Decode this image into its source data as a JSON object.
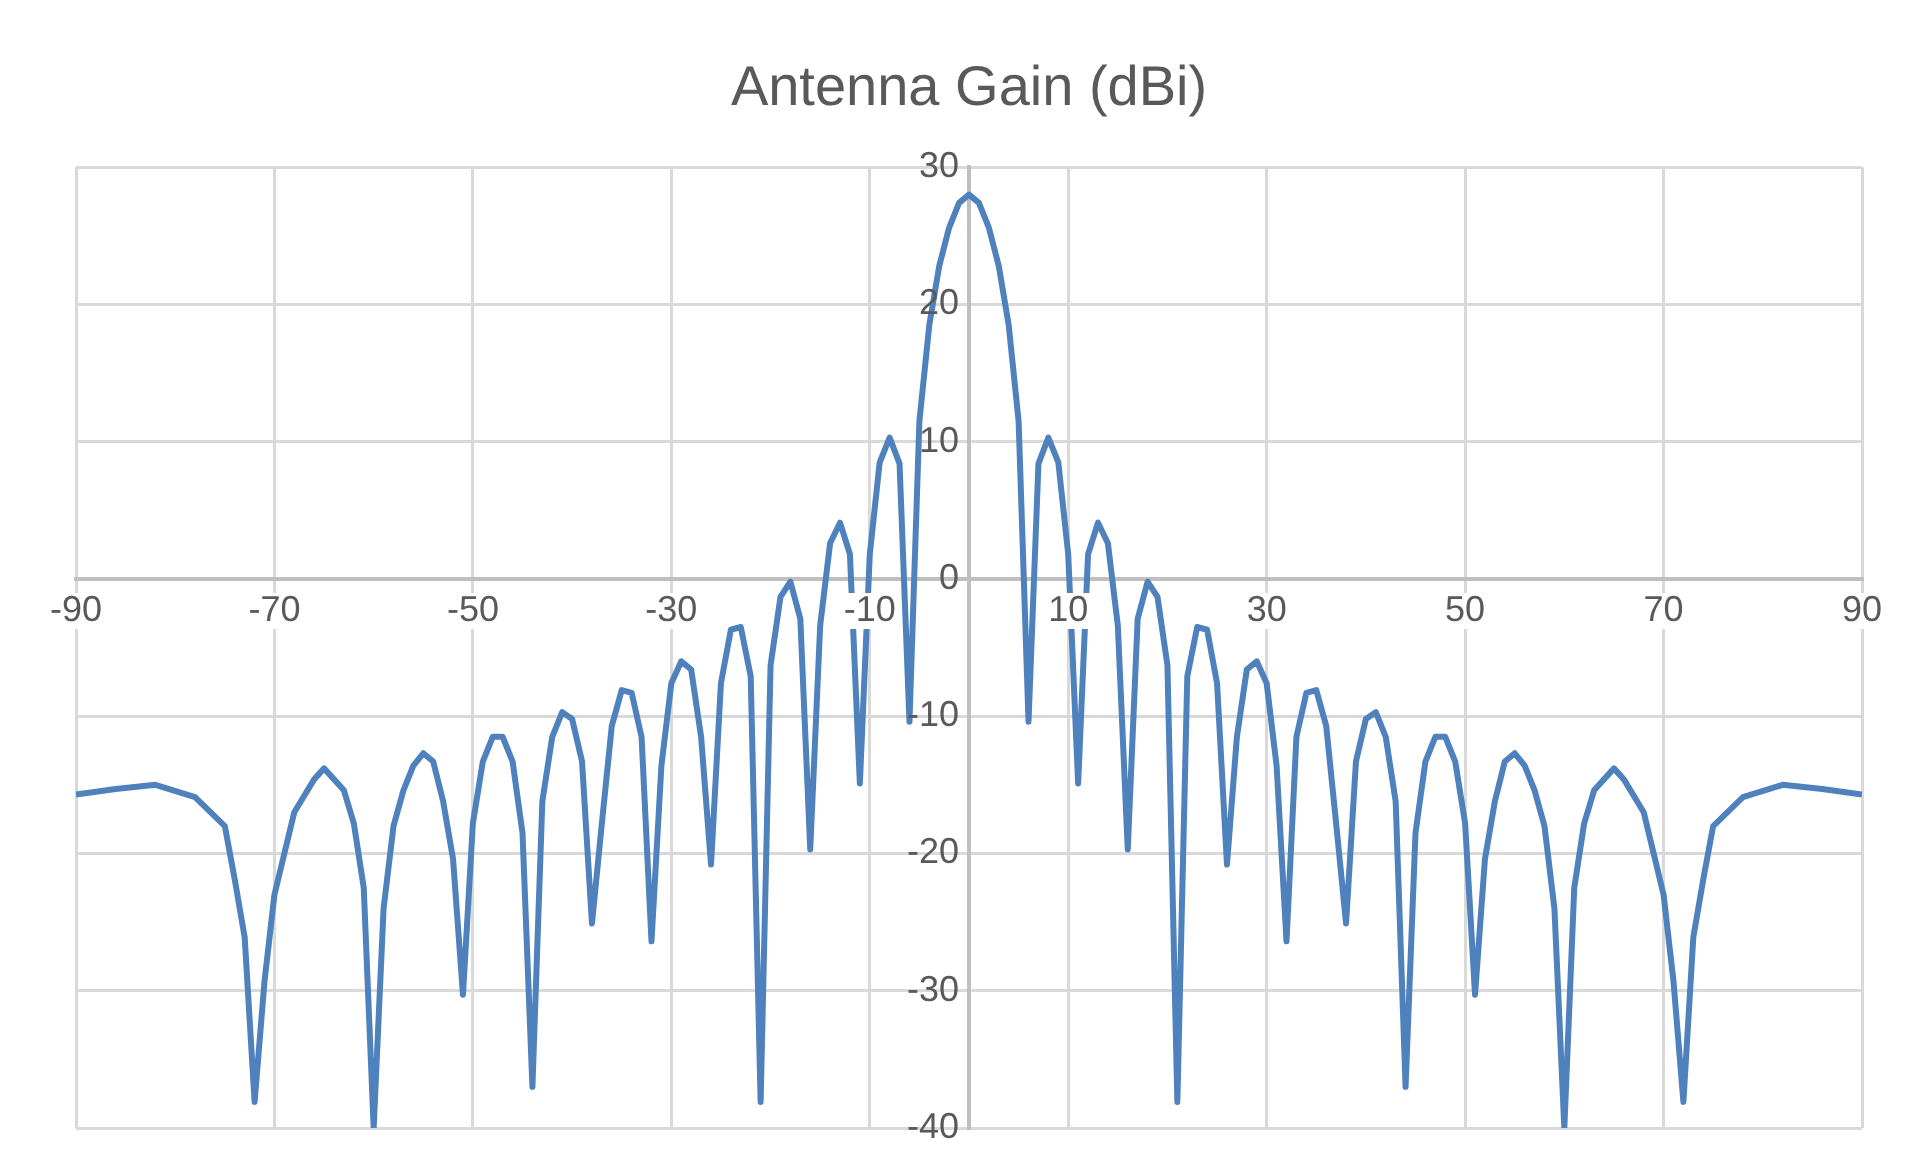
{
  "chart_data": {
    "type": "line",
    "title": "Antenna Gain (dBi)",
    "x": [
      -90,
      -86,
      -82,
      -78,
      -75,
      -74,
      -73,
      -72,
      -71,
      -70,
      -68,
      -66,
      -65,
      -63,
      -62,
      -61,
      -60,
      -59,
      -58,
      -57,
      -56,
      -55,
      -54,
      -53,
      -52,
      -51,
      -50,
      -49,
      -48,
      -47,
      -46,
      -45,
      -44,
      -43,
      -42,
      -41,
      -40,
      -39,
      -38,
      -37,
      -36,
      -35,
      -34,
      -33,
      -32,
      -31,
      -30,
      -29,
      -28,
      -27,
      -26,
      -25,
      -24,
      -23,
      -22,
      -21,
      -20,
      -19,
      -18,
      -17,
      -16,
      -15,
      -14,
      -13,
      -12,
      -11,
      -10,
      -9,
      -8,
      -7,
      -6,
      -5,
      -4,
      -3,
      -2,
      -1,
      0,
      1,
      2,
      3,
      4,
      5,
      6,
      7,
      8,
      9,
      10,
      11,
      12,
      13,
      14,
      15,
      16,
      17,
      18,
      19,
      20,
      21,
      22,
      23,
      24,
      25,
      26,
      27,
      28,
      29,
      30,
      31,
      32,
      33,
      34,
      35,
      36,
      37,
      38,
      39,
      40,
      41,
      42,
      43,
      44,
      45,
      46,
      47,
      48,
      49,
      50,
      51,
      52,
      53,
      54,
      55,
      56,
      57,
      58,
      59,
      60,
      61,
      62,
      63,
      65,
      66,
      68,
      70,
      71,
      72,
      73,
      74,
      75,
      78,
      82,
      86,
      90
    ],
    "series": [
      {
        "color": "#4f81bd",
        "values": [
          -15.7,
          -15.3,
          -15,
          -15.9,
          -18,
          -21.9,
          -26.1,
          -38.1,
          -29.3,
          -23,
          -17,
          -14.6,
          -13.8,
          -15.4,
          -17.8,
          -22.5,
          -40,
          -24,
          -18,
          -15.4,
          -13.6,
          -12.7,
          -13.3,
          -16.2,
          -20.4,
          -30.3,
          -17.8,
          -13.3,
          -11.5,
          -11.5,
          -13.3,
          -18.5,
          -37,
          -16.2,
          -11.5,
          -9.7,
          -10.2,
          -13.3,
          -25.1,
          -17.8,
          -10.7,
          -8.1,
          -8.3,
          -11.5,
          -26.4,
          -13.6,
          -7.6,
          -6.0,
          -6.6,
          -11.5,
          -20.8,
          -7.6,
          -3.7,
          -3.5,
          -7.1,
          -38.1,
          -6.3,
          -1.3,
          -0.2,
          -2.9,
          -19.7,
          -3.4,
          2.6,
          4.1,
          1.8,
          -14.9,
          1.8,
          8.5,
          10.3,
          8.4,
          -10.4,
          11.5,
          18.5,
          22.8,
          25.6,
          27.4,
          28,
          27.4,
          25.6,
          22.8,
          18.5,
          11.5,
          -10.4,
          8.4,
          10.3,
          8.5,
          1.8,
          -14.9,
          1.8,
          4.1,
          2.6,
          -3.4,
          -19.7,
          -2.9,
          -0.2,
          -1.3,
          -6.3,
          -38.1,
          -7.1,
          -3.5,
          -3.7,
          -7.6,
          -20.8,
          -11.5,
          -6.6,
          -6.0,
          -7.6,
          -13.6,
          -26.4,
          -11.5,
          -8.3,
          -8.1,
          -10.7,
          -17.8,
          -25.1,
          -13.3,
          -10.2,
          -9.7,
          -11.5,
          -16.2,
          -37,
          -18.5,
          -13.3,
          -11.5,
          -11.5,
          -13.3,
          -17.8,
          -30.3,
          -20.4,
          -16.2,
          -13.3,
          -12.7,
          -13.6,
          -15.4,
          -18,
          -24,
          -40,
          -22.5,
          -17.8,
          -15.4,
          -13.8,
          -14.6,
          -17,
          -23,
          -29.3,
          -38.1,
          -26.1,
          -21.9,
          -18,
          -15.9,
          -15,
          -15.3,
          -15.7
        ]
      }
    ],
    "xlim": [
      -90,
      90
    ],
    "xticks": [
      -90,
      -70,
      -50,
      -30,
      -10,
      10,
      30,
      50,
      70,
      90
    ],
    "ylim": [
      -40,
      30
    ],
    "yticks": [
      -40,
      -30,
      -20,
      -10,
      0,
      10,
      20,
      30
    ],
    "grid": true,
    "marker": "none",
    "line_style": "solid",
    "legend": false
  }
}
